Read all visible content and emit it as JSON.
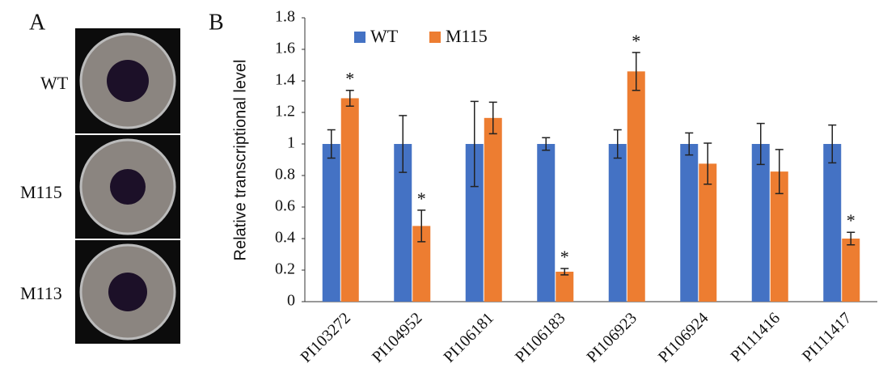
{
  "panel_a": {
    "label": "A",
    "rows": [
      "WT",
      "M115",
      "M113"
    ]
  },
  "chart_data": {
    "type": "bar",
    "panel_label": "B",
    "y_label": "Relative transcriptional level",
    "categories": [
      "PI103272",
      "PI104952",
      "PI106181",
      "PI106183",
      "PI106923",
      "PI106924",
      "PI111416",
      "PI111417"
    ],
    "series": [
      {
        "name": "WT",
        "color": "#4472c4",
        "values": [
          1,
          1,
          1,
          1,
          1,
          1,
          1,
          1
        ],
        "errors": [
          0.09,
          0.18,
          0.27,
          0.04,
          0.09,
          0.07,
          0.13,
          0.12
        ],
        "significance": [
          null,
          null,
          null,
          null,
          null,
          null,
          null,
          null
        ]
      },
      {
        "name": "M115",
        "color": "#ed7d31",
        "values": [
          1.29,
          0.48,
          1.165,
          0.19,
          1.46,
          0.875,
          0.825,
          0.4
        ],
        "errors": [
          0.05,
          0.1,
          0.1,
          0.02,
          0.12,
          0.13,
          0.14,
          0.04
        ],
        "significance": [
          "*",
          "*",
          null,
          "*",
          "*",
          null,
          null,
          "*"
        ]
      }
    ],
    "ylim": [
      0,
      1.8
    ],
    "yticks": [
      0,
      0.2,
      0.4,
      0.6,
      0.8,
      1,
      1.2,
      1.4,
      1.6,
      1.8
    ],
    "grid": false,
    "legend": "top-left"
  }
}
